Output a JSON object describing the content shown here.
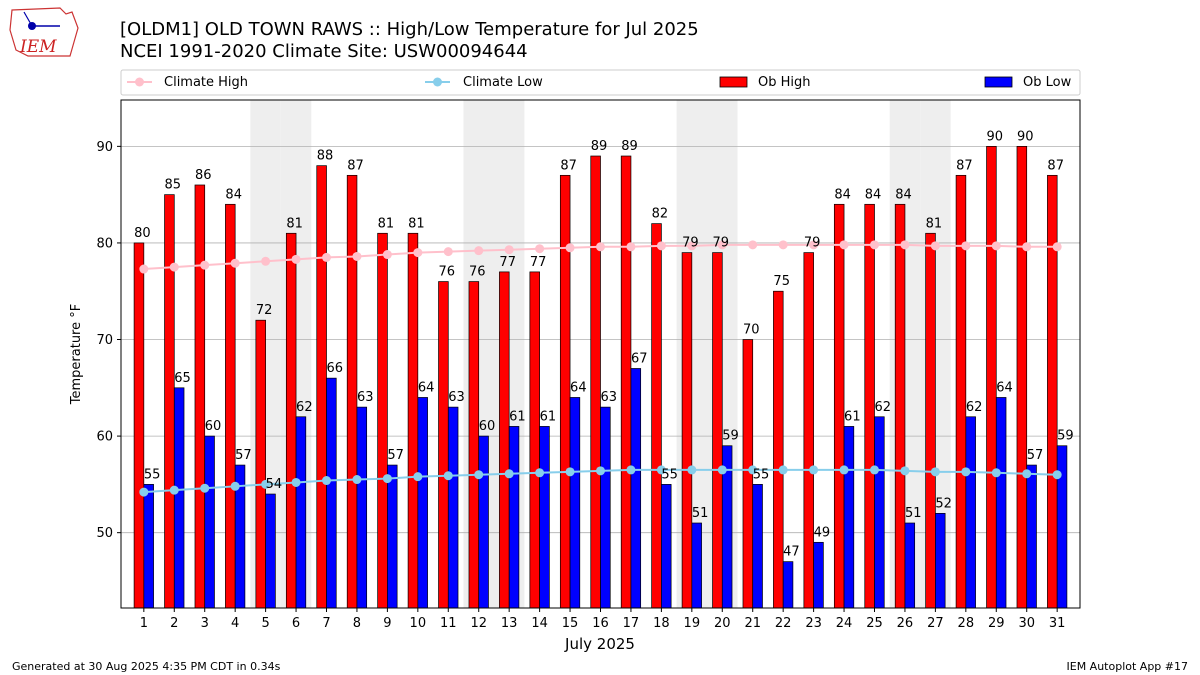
{
  "title_lines": [
    "[OLDM1] OLD TOWN RAWS :: High/Low Temperature for Jul 2025",
    "NCEI 1991-2020 Climate Site: USW00094644"
  ],
  "logo_text": "IEM",
  "footer_left": "Generated at 30 Aug 2025 4:35 PM CDT in 0.34s",
  "footer_right": "IEM Autoplot App #17",
  "colors": {
    "ob_high": "#ff0000",
    "ob_low": "#0000ff",
    "climate_high": "#ffc0cb",
    "climate_low": "#87ceeb",
    "weekend_shade": "#eeeeee",
    "grid": "#b0b0b0"
  },
  "chart_data": {
    "type": "bar",
    "xlabel": "July 2025",
    "ylabel": "Temperature °F",
    "ylim": [
      42.2,
      94.8
    ],
    "yticks": [
      50,
      60,
      70,
      80,
      90
    ],
    "grid": "horizontal",
    "legend_position": "top",
    "categories": [
      "1",
      "2",
      "3",
      "4",
      "5",
      "6",
      "7",
      "8",
      "9",
      "10",
      "11",
      "12",
      "13",
      "14",
      "15",
      "16",
      "17",
      "18",
      "19",
      "20",
      "21",
      "22",
      "23",
      "24",
      "25",
      "26",
      "27",
      "28",
      "29",
      "30",
      "31"
    ],
    "weekend_shaded_days": [
      5,
      6,
      12,
      13,
      19,
      20,
      26,
      27
    ],
    "series": [
      {
        "name": "Ob High",
        "kind": "bar",
        "values": [
          80,
          85,
          86,
          84,
          72,
          81,
          88,
          87,
          81,
          81,
          76,
          76,
          77,
          77,
          87,
          89,
          89,
          82,
          79,
          79,
          70,
          75,
          79,
          84,
          84,
          84,
          81,
          87,
          90,
          90,
          87
        ],
        "labels": [
          "80",
          "85",
          "86",
          "84",
          "72",
          "81",
          "88",
          "87",
          "81",
          "81",
          "76",
          "76",
          "77",
          "77",
          "87",
          "89",
          "89",
          "82",
          "79",
          "79",
          "70",
          "75",
          "79",
          "84",
          "84",
          "84",
          "81",
          "87",
          "90",
          "90",
          "87"
        ]
      },
      {
        "name": "Ob Low",
        "kind": "bar",
        "values": [
          55,
          65,
          60,
          57,
          54,
          62,
          66,
          63,
          57,
          64,
          63,
          60,
          61,
          61,
          64,
          63,
          67,
          55,
          51,
          59,
          55,
          47,
          49,
          61,
          62,
          51,
          52,
          62,
          64,
          57,
          59
        ],
        "labels": [
          "55",
          "65",
          "60",
          "57",
          "54",
          "62",
          "66",
          "63",
          "57",
          "64",
          "63",
          "60",
          "61",
          "61",
          "64",
          "63",
          "67",
          "55",
          "51",
          "59",
          "55",
          "47",
          "49",
          "61",
          "62",
          "51",
          "52",
          "62",
          "64",
          "57",
          "59"
        ]
      },
      {
        "name": "Climate High",
        "kind": "line",
        "values": [
          77.3,
          77.5,
          77.7,
          77.9,
          78.1,
          78.3,
          78.5,
          78.6,
          78.8,
          79.0,
          79.1,
          79.2,
          79.3,
          79.4,
          79.5,
          79.6,
          79.6,
          79.7,
          79.7,
          79.8,
          79.8,
          79.8,
          79.8,
          79.8,
          79.8,
          79.8,
          79.7,
          79.7,
          79.7,
          79.6,
          79.6
        ]
      },
      {
        "name": "Climate Low",
        "kind": "line",
        "values": [
          54.2,
          54.4,
          54.6,
          54.8,
          55.0,
          55.2,
          55.4,
          55.5,
          55.6,
          55.8,
          55.9,
          56.0,
          56.1,
          56.2,
          56.3,
          56.4,
          56.5,
          56.5,
          56.5,
          56.5,
          56.5,
          56.5,
          56.5,
          56.5,
          56.5,
          56.4,
          56.3,
          56.3,
          56.2,
          56.1,
          56.0
        ]
      }
    ],
    "legend": [
      "Climate High",
      "Climate Low",
      "Ob High",
      "Ob Low"
    ]
  }
}
